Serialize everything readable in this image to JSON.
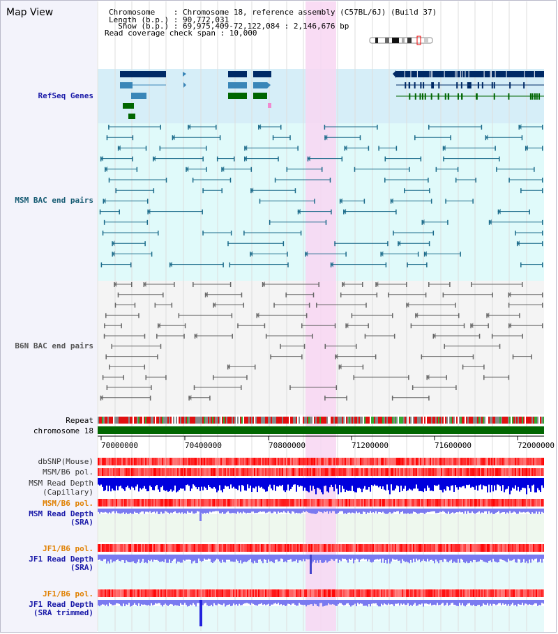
{
  "title": "Map View",
  "info": {
    "chromosome_label": "Chromosome    : ",
    "chromosome": "Chromosome 18, reference assembly (C57BL/6J) (Build 37)",
    "length_label": "Length (b.p.) : ",
    "length": "90,772,031",
    "show_label": "  Show (b.p.) : ",
    "show": "69,975,409-72,122,084 : 2,146,676 bp",
    "coverage_label": "Read coverage check span : ",
    "coverage": "10,000"
  },
  "tracks": {
    "refseq": "RefSeq Genes",
    "msm_bac": "MSM BAC end pairs",
    "b6n_bac": "B6N BAC end pairs",
    "repeat": "Repeat",
    "chromosome": "chromosome 18",
    "dbsnp": "dbSNP(Mouse)",
    "msm_b6_pol": "MSM/B6 pol.",
    "msm_depth_cap_1": "MSM Read Depth",
    "msm_depth_cap_2": "(Capillary)",
    "msm_b6_pol_2": "MSM/B6 pol.",
    "msm_depth_sra_1": "MSM Read Depth",
    "msm_depth_sra_2": "(SRA)",
    "jf1_b6_pol": "JF1/B6 pol.",
    "jf1_depth_sra_1": "JF1 Read Depth",
    "jf1_depth_sra_2": "(SRA)",
    "jf1_b6_pol_2": "JF1/B6 pol.",
    "jf1_depth_trim_1": "JF1 Read Depth",
    "jf1_depth_trim_2": "(SRA trimmed)"
  },
  "axis_ticks": [
    "70000000",
    "70400000",
    "70800000",
    "71200000",
    "71600000",
    "72000000"
  ],
  "colors": {
    "refseq_bg": "#d6eef8",
    "bac_bg": "#e0fafa",
    "highlight": "#f8d6f2",
    "chrom_bar": "#006600",
    "depth_dark": "#0000dd",
    "depth_light": "#7a7af0"
  }
}
